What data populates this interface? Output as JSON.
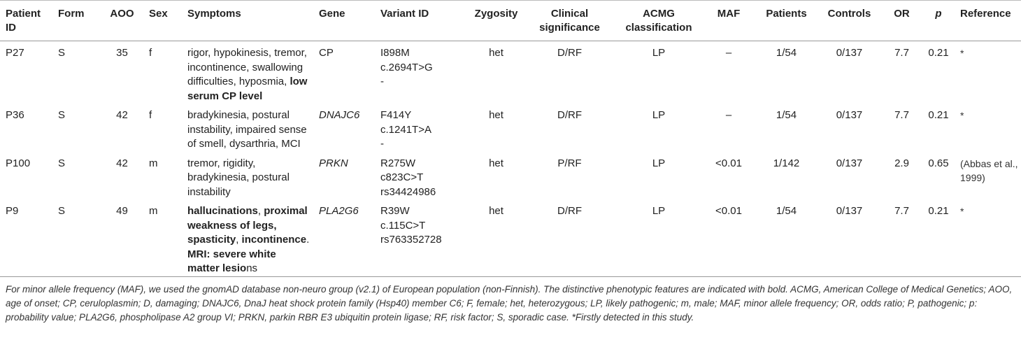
{
  "table": {
    "columns": [
      "Patient ID",
      "Form",
      "AOO",
      "Sex",
      "Symptoms",
      "Gene",
      "Variant ID",
      "Zygosity",
      "Clinical significance",
      "ACMG classification",
      "MAF",
      "Patients",
      "Controls",
      "OR",
      "p",
      "Reference"
    ],
    "rows": [
      {
        "patient_id": "P27",
        "form": "S",
        "aoo": "35",
        "sex": "f",
        "symptoms": [
          {
            "text": "rigor, hypokinesis, tremor, incontinence, swallowing difficulties, hyposmia, ",
            "bold": false
          },
          {
            "text": "low serum CP level",
            "bold": true
          }
        ],
        "gene": {
          "text": "CP",
          "italic": false
        },
        "variant_id": [
          "I898M",
          "c.2694T>G",
          "-"
        ],
        "zygosity": "het",
        "clinical_significance": "D/RF",
        "acmg": "LP",
        "maf": "–",
        "patients": "1/54",
        "controls": "0/137",
        "or": "7.7",
        "p": "0.21",
        "reference": "*"
      },
      {
        "patient_id": "P36",
        "form": "S",
        "aoo": "42",
        "sex": "f",
        "symptoms": [
          {
            "text": "bradykinesia, postural instability, impaired sense of smell, dysarthria, MCI",
            "bold": false
          }
        ],
        "gene": {
          "text": "DNAJC6",
          "italic": true
        },
        "variant_id": [
          "F414Y",
          "c.1241T>A",
          "-"
        ],
        "zygosity": "het",
        "clinical_significance": "D/RF",
        "acmg": "LP",
        "maf": "–",
        "patients": "1/54",
        "controls": "0/137",
        "or": "7.7",
        "p": "0.21",
        "reference": "*"
      },
      {
        "patient_id": "P100",
        "form": "S",
        "aoo": "42",
        "sex": "m",
        "symptoms": [
          {
            "text": "tremor, rigidity, bradykinesia, postural instability",
            "bold": false
          }
        ],
        "gene": {
          "text": "PRKN",
          "italic": true
        },
        "variant_id": [
          "R275W",
          "c823C>T",
          "rs34424986"
        ],
        "zygosity": "het",
        "clinical_significance": "P/RF",
        "acmg": "LP",
        "maf": "<0.01",
        "patients": "1/142",
        "controls": "0/137",
        "or": "2.9",
        "p": "0.65",
        "reference": "(Abbas et al., 1999)"
      },
      {
        "patient_id": "P9",
        "form": "S",
        "aoo": "49",
        "sex": "m",
        "symptoms": [
          {
            "text": "hallucinations",
            "bold": true
          },
          {
            "text": ", ",
            "bold": false
          },
          {
            "text": "proximal weakness of legs, spasticity",
            "bold": true
          },
          {
            "text": ", ",
            "bold": false
          },
          {
            "text": "incontinence",
            "bold": true
          },
          {
            "text": ". ",
            "bold": false
          },
          {
            "text": "MRI: severe white matter lesio",
            "bold": true
          },
          {
            "text": "ns",
            "bold": false
          }
        ],
        "gene": {
          "text": "PLA2G6",
          "italic": true
        },
        "variant_id": [
          "R39W",
          "c.115C>T",
          "rs763352728"
        ],
        "zygosity": "het",
        "clinical_significance": "D/RF",
        "acmg": "LP",
        "maf": "<0.01",
        "patients": "1/54",
        "controls": "0/137",
        "or": "7.7",
        "p": "0.21",
        "reference": "*"
      }
    ]
  },
  "footnote": "For minor allele frequency (MAF), we used the gnomAD database non-neuro group (v2.1) of European population (non-Finnish). The distinctive phenotypic features are indicated with bold. ACMG, American College of Medical Genetics; AOO, age of onset; CP, ceruloplasmin; D, damaging; DNAJC6, DnaJ heat shock protein family (Hsp40) member C6; F, female; het, heterozygous; LP, likely pathogenic; m, male; MAF, minor allele frequency; OR, odds ratio; P, pathogenic; p: probability value; PLA2G6, phospholipase A2 group VI; PRKN, parkin RBR E3 ubiquitin protein ligase; RF, risk factor; S, sporadic case. *Firstly detected in this study."
}
